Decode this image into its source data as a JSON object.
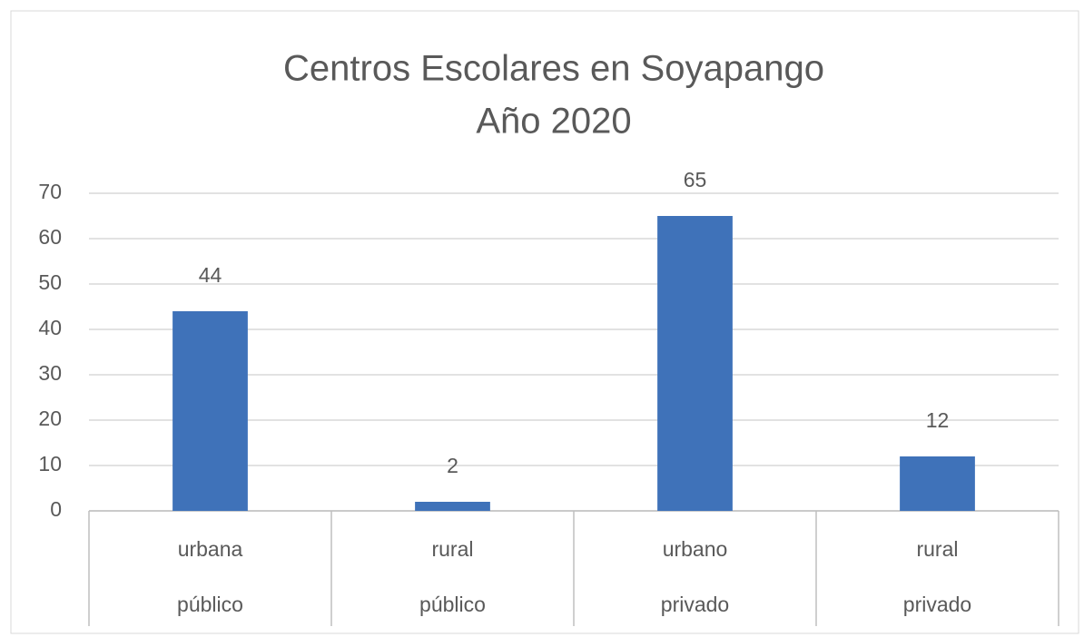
{
  "chart_data": {
    "type": "bar",
    "title": [
      "Centros Escolares en Soyapango",
      "Año 2020"
    ],
    "categories": [
      [
        "urbana",
        "público"
      ],
      [
        "rural",
        "público"
      ],
      [
        "urbano",
        "privado"
      ],
      [
        "rural",
        "privado"
      ]
    ],
    "values": [
      44,
      2,
      65,
      12
    ],
    "color": "#3f72b9",
    "ylim": [
      0,
      70
    ],
    "yticks": [
      0,
      10,
      20,
      30,
      40,
      50,
      60,
      70
    ],
    "grid": true,
    "data_labels": true
  }
}
